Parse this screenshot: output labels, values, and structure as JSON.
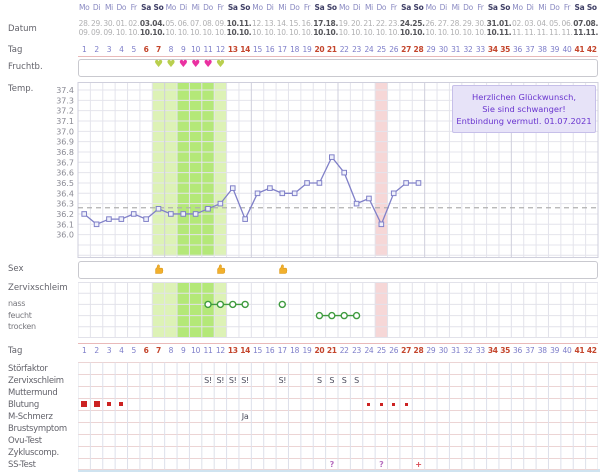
{
  "colors": {
    "weekday_normal": "#8a8ac2",
    "weekday_weekend": "#3f3f66",
    "date_normal": "#b0b0b2",
    "date_weekend": "#55555a",
    "tag_normal": "#7d7dc9",
    "tag_weekend": "#c4452c",
    "heart_normal": "#b9cf4e",
    "heart_high": "#ea31a1",
    "band_fertile": "#ddf2b6",
    "band_high": "#b4e878",
    "band_pregnancy": "#f6d7d7",
    "temp_line": "#8080c8",
    "temp_marker_fill": "#eef0fb",
    "coverline": "#b0b0b0",
    "hand": "#f2b02c",
    "mucus": "#3f9b3f",
    "blood": "#cc2222",
    "entry_text": "#4a4a5a",
    "question": "#b66fc0",
    "plus": "#d94b55",
    "label": "#63636b"
  },
  "labels": {
    "datum": "Datum",
    "tag": "Tag",
    "fruchtb": "Fruchtb.",
    "temp": "Temp.",
    "sex": "Sex",
    "zervixschleim": "Zervixschleim",
    "tag2": "Tag"
  },
  "header": {
    "weekdays": [
      "Mo",
      "Di",
      "Mi",
      "Do",
      "Fr",
      "Sa",
      "So",
      "Mo",
      "Di",
      "Mi",
      "Do",
      "Fr",
      "Sa",
      "So",
      "Mo",
      "Di",
      "Mi",
      "Do",
      "Fr",
      "Sa",
      "So",
      "Mo",
      "Di",
      "Mi",
      "Do",
      "Fr",
      "Sa",
      "So",
      "Mo",
      "Di",
      "Mi",
      "Do",
      "Fr",
      "Sa",
      "So",
      "Mo",
      "Di",
      "Mi",
      "Do",
      "Fr",
      "Sa",
      "So"
    ],
    "date_days": [
      "28.",
      "29.",
      "30.",
      "01.",
      "02.",
      "03.",
      "04.",
      "05.",
      "06.",
      "07.",
      "08.",
      "09.",
      "10.",
      "11.",
      "12.",
      "13.",
      "14.",
      "15.",
      "16.",
      "17.",
      "18.",
      "19.",
      "20.",
      "21.",
      "22.",
      "23.",
      "24.",
      "25.",
      "26.",
      "27.",
      "28.",
      "29.",
      "30.",
      "31.",
      "01.",
      "02.",
      "03.",
      "04.",
      "05.",
      "06.",
      "07.",
      "08."
    ],
    "date_months": [
      "09.",
      "09.",
      "09.",
      "10.",
      "10.",
      "10.",
      "10.",
      "10.",
      "10.",
      "10.",
      "10.",
      "10.",
      "10.",
      "10.",
      "10.",
      "10.",
      "10.",
      "10.",
      "10.",
      "10.",
      "10.",
      "10.",
      "10.",
      "10.",
      "10.",
      "10.",
      "10.",
      "10.",
      "10.",
      "10.",
      "10.",
      "10.",
      "10.",
      "10.",
      "11.",
      "11.",
      "11.",
      "11.",
      "11.",
      "11.",
      "11.",
      "11."
    ],
    "cycle_days": [
      1,
      2,
      3,
      4,
      5,
      6,
      7,
      8,
      9,
      10,
      11,
      12,
      13,
      14,
      15,
      16,
      17,
      18,
      19,
      20,
      21,
      22,
      23,
      24,
      25,
      26,
      27,
      28,
      29,
      30,
      31,
      32,
      33,
      34,
      35,
      36,
      37,
      38,
      39,
      40,
      41,
      42
    ],
    "weekend_cycle_days": [
      6,
      7,
      13,
      14,
      20,
      21,
      27,
      28,
      34,
      35,
      41,
      42
    ]
  },
  "fertility_hearts": [
    {
      "day": 7,
      "level": "normal"
    },
    {
      "day": 8,
      "level": "normal"
    },
    {
      "day": 9,
      "level": "high"
    },
    {
      "day": 10,
      "level": "high"
    },
    {
      "day": 11,
      "level": "high"
    },
    {
      "day": 12,
      "level": "normal"
    }
  ],
  "chart_data": {
    "type": "line",
    "ylabel": "Temp.",
    "y_ticks": [
      37.4,
      37.3,
      37.2,
      37.1,
      37.0,
      36.9,
      36.8,
      36.7,
      36.6,
      36.5,
      36.4,
      36.3,
      36.2,
      36.1,
      36.0
    ],
    "ylim": [
      35.8,
      37.45
    ],
    "x_days": [
      1,
      2,
      3,
      4,
      5,
      6,
      7,
      8,
      9,
      10,
      11,
      12,
      13,
      14,
      15,
      16,
      17,
      18,
      19,
      20,
      21,
      22,
      23,
      24,
      25,
      26,
      27,
      28
    ],
    "temps": [
      36.2,
      36.1,
      36.15,
      36.15,
      36.2,
      36.15,
      36.25,
      36.2,
      36.2,
      36.2,
      36.25,
      36.3,
      36.45,
      36.15,
      36.4,
      36.45,
      36.4,
      36.4,
      36.5,
      36.5,
      36.75,
      36.6,
      36.3,
      36.35,
      36.1,
      36.4,
      36.5,
      36.5
    ],
    "coverline": 36.26,
    "bands": {
      "fertile": [
        7,
        12
      ],
      "high": [
        9,
        11
      ],
      "pregnancy": 25
    },
    "grid": true
  },
  "message_box": {
    "lines": [
      "Herzlichen Glückwunsch,",
      "Sie sind schwanger!",
      "Entbindung vermutl. 01.07.2021"
    ]
  },
  "sex_days": [
    7,
    12,
    17
  ],
  "cervical_mucus_chart": {
    "rows": [
      "nass",
      "feucht",
      "trocken"
    ],
    "segments": [
      {
        "level": "nass",
        "days": [
          11,
          12,
          13,
          14
        ]
      },
      {
        "level": "nass",
        "days": [
          17
        ]
      },
      {
        "level": "feucht",
        "days": [
          20,
          21,
          22,
          23
        ]
      }
    ]
  },
  "lower_table": {
    "rows": [
      {
        "label": "Störfaktor",
        "entries": []
      },
      {
        "label": "Zervixschleim",
        "entries": [
          {
            "day": 11,
            "text": "S!"
          },
          {
            "day": 12,
            "text": "S!"
          },
          {
            "day": 13,
            "text": "S!"
          },
          {
            "day": 14,
            "text": "S!"
          },
          {
            "day": 17,
            "text": "S!"
          },
          {
            "day": 20,
            "text": "S"
          },
          {
            "day": 21,
            "text": "S"
          },
          {
            "day": 22,
            "text": "S"
          },
          {
            "day": 23,
            "text": "S"
          }
        ]
      },
      {
        "label": "Muttermund",
        "entries": []
      },
      {
        "label": "Blutung",
        "entries": [
          {
            "day": 1,
            "mark": "strong"
          },
          {
            "day": 2,
            "mark": "strong"
          },
          {
            "day": 3,
            "mark": "light"
          },
          {
            "day": 4,
            "mark": "light"
          },
          {
            "day": 24,
            "mark": "spot"
          },
          {
            "day": 25,
            "mark": "spot"
          },
          {
            "day": 26,
            "mark": "spot"
          },
          {
            "day": 27,
            "mark": "spot"
          }
        ]
      },
      {
        "label": "M-Schmerz",
        "entries": [
          {
            "day": 14,
            "text": "Ja"
          }
        ]
      },
      {
        "label": "Brustsymptom",
        "entries": []
      },
      {
        "label": "Ovu-Test",
        "entries": []
      },
      {
        "label": "Zykluscomp.",
        "entries": []
      },
      {
        "label": "SS-Test",
        "entries": [
          {
            "day": 21,
            "text": "?",
            "color": "purple"
          },
          {
            "day": 25,
            "text": "?",
            "color": "purple"
          },
          {
            "day": 28,
            "text": "+",
            "color": "red"
          }
        ]
      }
    ]
  }
}
